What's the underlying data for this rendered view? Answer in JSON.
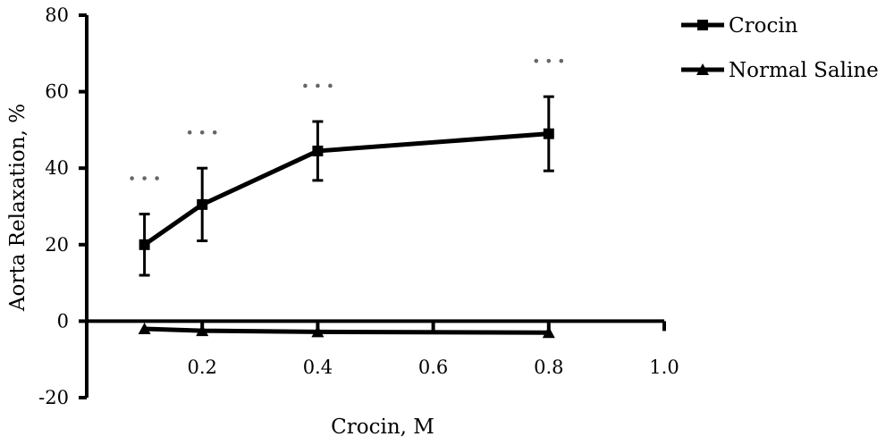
{
  "chart_data": {
    "type": "line",
    "title": "",
    "xlabel": "Crocin, M",
    "ylabel": "Aorta Relaxation, %",
    "xlim": [
      0,
      1.0
    ],
    "ylim": [
      -20,
      80
    ],
    "x_ticks": [
      0.2,
      0.4,
      0.6,
      0.8,
      1.0
    ],
    "x_tick_labels": [
      "0.2",
      "0.4",
      "0.6",
      "0.8",
      "1.0"
    ],
    "y_ticks": [
      -20,
      0,
      20,
      40,
      60,
      80
    ],
    "y_tick_labels": [
      "-20",
      "0",
      "20",
      "40",
      "60",
      "80"
    ],
    "grid": false,
    "legend_position": "top-right",
    "significance_label": "***",
    "series": [
      {
        "name": "Crocin",
        "marker": "square",
        "color": "#000000",
        "x": [
          0.1,
          0.2,
          0.4,
          0.8
        ],
        "y": [
          20,
          30.5,
          44.5,
          49
        ],
        "error": [
          8,
          9.5,
          7.7,
          9.7
        ],
        "significance": [
          "***",
          "***",
          "***",
          "***"
        ]
      },
      {
        "name": "Normal Saline",
        "marker": "triangle",
        "color": "#000000",
        "x": [
          0.1,
          0.2,
          0.4,
          0.8
        ],
        "y": [
          -2,
          -2.5,
          -2.8,
          -3
        ]
      }
    ]
  }
}
